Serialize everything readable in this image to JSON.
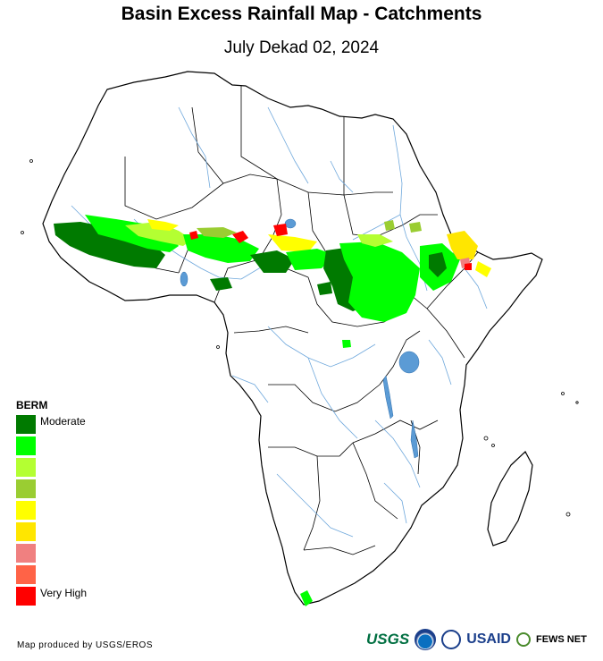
{
  "header": {
    "title": "Basin Excess Rainfall Map - Catchments",
    "subtitle": "July Dekad 02, 2024"
  },
  "legend": {
    "title": "BERM",
    "classes": [
      {
        "color": "#007a00",
        "label": "Moderate"
      },
      {
        "color": "#00ff00",
        "label": ""
      },
      {
        "color": "#b4ff32",
        "label": ""
      },
      {
        "color": "#9acd32",
        "label": ""
      },
      {
        "color": "#ffff00",
        "label": ""
      },
      {
        "color": "#ffe600",
        "label": ""
      },
      {
        "color": "#f08080",
        "label": ""
      },
      {
        "color": "#ff6347",
        "label": ""
      },
      {
        "color": "#ff0000",
        "label": "Very High"
      }
    ]
  },
  "footer": {
    "credit": "Map produced by USGS/EROS",
    "logos": {
      "usgs": "USGS",
      "usaid": "USAID",
      "fews": "FEWS NET"
    }
  },
  "map": {
    "land_color": "#ffffff",
    "border_color": "#000000",
    "river_color": "#6fa8dc",
    "lake_color": "#5b9bd5"
  }
}
